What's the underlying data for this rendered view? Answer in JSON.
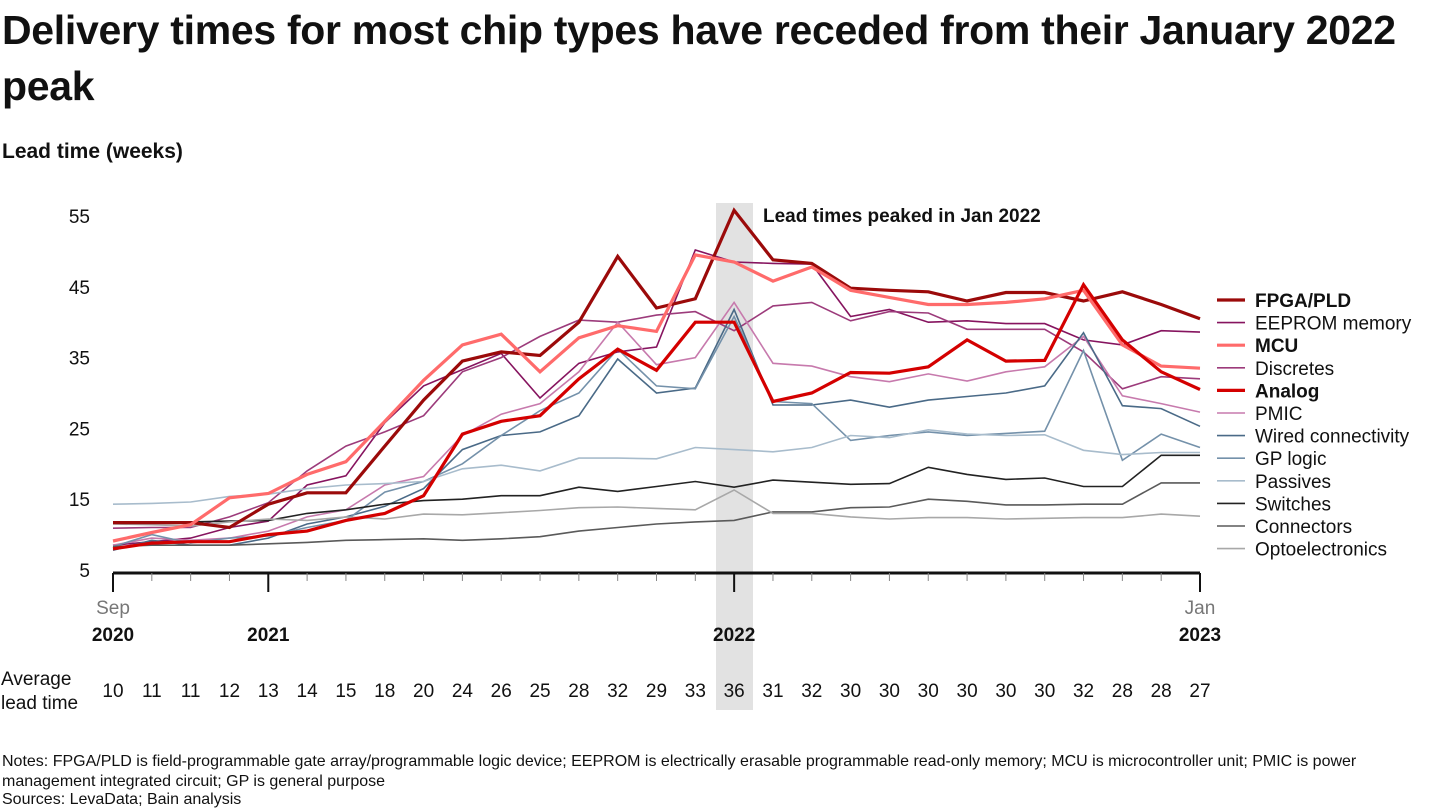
{
  "title": "Delivery times for most chip types have receded from their January 2022 peak",
  "chart_data": {
    "type": "line",
    "title": "Delivery times for most chip types have receded from their January 2022 peak",
    "ylabel": "Lead time (weeks)",
    "ylim": [
      5,
      55
    ],
    "yticks": [
      "55",
      "45",
      "35",
      "25",
      "15",
      "5"
    ],
    "x": [
      "Sep 2020",
      "Oct 2020",
      "Nov 2020",
      "Dec 2020",
      "Jan 2021",
      "Feb 2021",
      "Mar 2021",
      "Apr 2021",
      "May 2021",
      "Jun 2021",
      "Jul 2021",
      "Aug 2021",
      "Sep 2021",
      "Oct 2021",
      "Nov 2021",
      "Dec 2021",
      "Jan 2022",
      "Feb 2022",
      "Mar 2022",
      "Apr 2022",
      "May 2022",
      "Jun 2022",
      "Jul 2022",
      "Aug 2022",
      "Sep 2022",
      "Oct 2022",
      "Nov 2022",
      "Dec 2022",
      "Jan 2023"
    ],
    "xtick_labels": [
      {
        "month": "Sep",
        "year": "2020"
      },
      {
        "month": "",
        "year": "2021"
      },
      {
        "month": "",
        "year": "2022"
      },
      {
        "month": "Jan",
        "year": "2023"
      }
    ],
    "grid": false,
    "legend_position": "right",
    "annotation": "Lead times peaked in Jan 2022",
    "series": [
      {
        "name": "FPGA/PLD",
        "bold": true,
        "color": "#9b0a0a",
        "values": [
          11.7,
          11.7,
          11.7,
          11,
          14.3,
          15.9,
          15.9,
          22.5,
          29,
          34.5,
          35.8,
          35.3,
          40,
          49.3,
          42,
          43.3,
          55.8,
          48.8,
          48.3,
          44.8,
          44.5,
          44.3,
          43,
          44.2,
          44.2,
          43,
          44.3,
          42.5,
          40.5
        ]
      },
      {
        "name": "EEPROM memory",
        "bold": false,
        "color": "#86145f",
        "values": [
          8.5,
          9,
          9.5,
          11,
          11.9,
          17,
          18.3,
          25.8,
          31,
          33.3,
          35.6,
          29.3,
          34.2,
          35.8,
          36.5,
          50.2,
          48.5,
          48.3,
          48.2,
          40.8,
          41.8,
          40,
          40.2,
          39.8,
          39.8,
          37.5,
          36.8,
          38.8,
          38.6
        ]
      },
      {
        "name": "MCU",
        "bold": true,
        "color": "#ff6b6b",
        "values": [
          9.1,
          10.3,
          11.4,
          15.2,
          15.8,
          18.5,
          20.3,
          26,
          31.8,
          36.8,
          38.3,
          33,
          37.8,
          39.5,
          38.7,
          49.5,
          48.5,
          45.8,
          47.8,
          44.5,
          43.5,
          42.5,
          42.5,
          42.8,
          43.3,
          44.5,
          36.8,
          33.8,
          33.5
        ]
      },
      {
        "name": "Discretes",
        "bold": false,
        "color": "#9c3b7b",
        "values": [
          10.9,
          11,
          11,
          12.5,
          14.5,
          19,
          22.5,
          24.5,
          26.8,
          33,
          35,
          38,
          40.3,
          40,
          41,
          41.5,
          38.8,
          42.3,
          42.8,
          40.2,
          41.5,
          41.3,
          39,
          39,
          39,
          35.8,
          30.6,
          32.3,
          32
        ]
      },
      {
        "name": "Analog",
        "bold": true,
        "color": "#d40000",
        "values": [
          8,
          8.8,
          9,
          9,
          10,
          10.5,
          12,
          13,
          15.5,
          24.2,
          26,
          26.8,
          32,
          36.2,
          33.2,
          40,
          40,
          28.8,
          30,
          32.9,
          32.8,
          33.7,
          37.5,
          34.5,
          34.6,
          45.3,
          37.5,
          33,
          30.5
        ]
      },
      {
        "name": "PMIC",
        "bold": false,
        "color": "#c77aad",
        "values": [
          8.5,
          9.5,
          9.2,
          9.5,
          10.5,
          12.5,
          13.5,
          17,
          18.2,
          24,
          27,
          28.5,
          33,
          40,
          34,
          35,
          42.8,
          34.2,
          33.8,
          32.3,
          31.6,
          32.7,
          31.7,
          33,
          33.7,
          38,
          29.6,
          28.5,
          27.3
        ]
      },
      {
        "name": "Wired connectivity",
        "bold": false,
        "color": "#4a6a87",
        "values": [
          7.8,
          9.2,
          8.5,
          8.5,
          9.5,
          11.5,
          12.5,
          14,
          16.5,
          22,
          24,
          24.5,
          26.8,
          34.8,
          30,
          30.7,
          41.8,
          28.3,
          28.3,
          29,
          28,
          29,
          29.5,
          30,
          31,
          38.5,
          28.2,
          27.8,
          25.3
        ]
      },
      {
        "name": "GP logic",
        "bold": false,
        "color": "#7491aa",
        "values": [
          8.3,
          10,
          8.8,
          9.5,
          9.8,
          11,
          12,
          16,
          17.5,
          20,
          24,
          27.5,
          30,
          36.2,
          31,
          30.6,
          40.8,
          28.8,
          28.5,
          23.3,
          24,
          24.5,
          24,
          24.3,
          24.6,
          36,
          20.5,
          24.2,
          22.3
        ]
      },
      {
        "name": "Passives",
        "bold": false,
        "color": "#a8bccc",
        "values": [
          14.3,
          14.4,
          14.6,
          15.4,
          15.7,
          16.5,
          17,
          17.2,
          17.5,
          19.3,
          19.8,
          19,
          20.8,
          20.8,
          20.7,
          22.3,
          22,
          21.7,
          22.3,
          24,
          23.7,
          24.8,
          24.2,
          24,
          24.1,
          21.9,
          21.3,
          21.6,
          21.6
        ]
      },
      {
        "name": "Switches",
        "bold": false,
        "color": "#222222",
        "values": [
          11.7,
          11.7,
          11.8,
          11.9,
          12,
          13,
          13.5,
          14.3,
          14.8,
          15,
          15.5,
          15.5,
          16.7,
          16.1,
          16.8,
          17.5,
          16.7,
          17.7,
          17.4,
          17.1,
          17.2,
          19.5,
          18.5,
          17.8,
          18,
          16.8,
          16.8,
          21.2,
          21.2
        ]
      },
      {
        "name": "Connectors",
        "bold": false,
        "color": "#5a5a5a",
        "values": [
          8.3,
          8.5,
          8.5,
          8.5,
          8.7,
          8.9,
          9.2,
          9.3,
          9.4,
          9.2,
          9.4,
          9.7,
          10.5,
          11,
          11.5,
          11.8,
          12,
          13.2,
          13.2,
          13.8,
          13.9,
          15,
          14.7,
          14.2,
          14.2,
          14.3,
          14.3,
          17.3,
          17.3
        ]
      },
      {
        "name": "Optoelectronics",
        "bold": false,
        "color": "#a8a8a8",
        "values": [
          11.5,
          11.4,
          11.2,
          11.8,
          12.2,
          12,
          12.5,
          12.2,
          12.9,
          12.8,
          13.1,
          13.4,
          13.8,
          13.9,
          13.7,
          13.5,
          16.3,
          13,
          13,
          12.5,
          12.2,
          12.4,
          12.4,
          12.2,
          12.3,
          12.4,
          12.4,
          12.9,
          12.6
        ]
      }
    ],
    "average_lead_time": {
      "label_line1": "Average",
      "label_line2": "lead time",
      "values": [
        "10",
        "11",
        "11",
        "12",
        "13",
        "14",
        "15",
        "18",
        "20",
        "24",
        "26",
        "25",
        "28",
        "32",
        "29",
        "33",
        "36",
        "31",
        "32",
        "30",
        "30",
        "30",
        "30",
        "30",
        "30",
        "32",
        "28",
        "28",
        "27"
      ]
    }
  },
  "notes": "Notes: FPGA/PLD is field-programmable gate array/programmable logic device; EEPROM is electrically erasable programmable read-only memory; MCU is microcontroller unit; PMIC is power management integrated circuit; GP is general purpose",
  "sources": "Sources: LevaData; Bain analysis"
}
